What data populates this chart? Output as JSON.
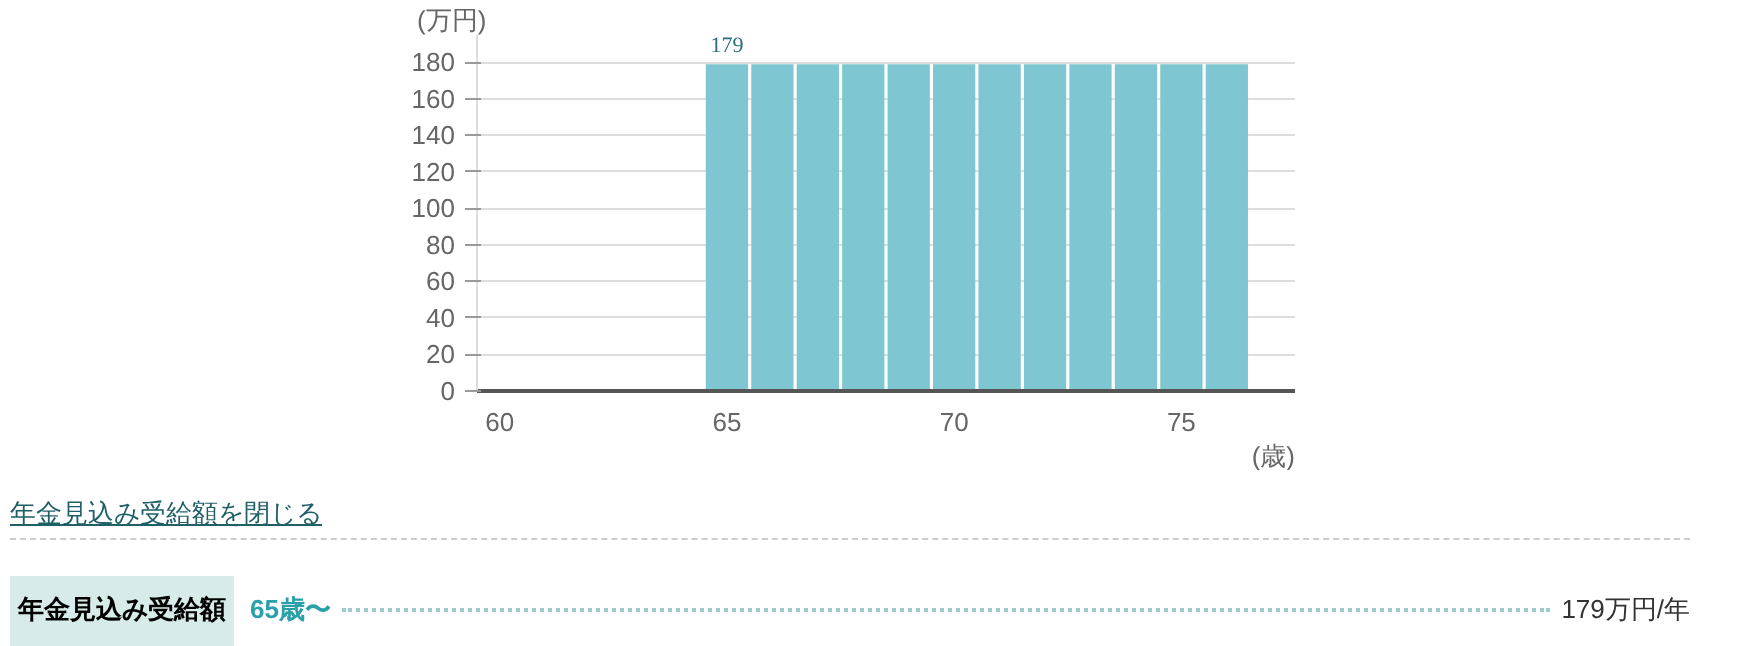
{
  "chart_data": {
    "type": "bar",
    "xlabel": "(歳)",
    "ylabel": "(万円)",
    "x": [
      65,
      66,
      67,
      68,
      69,
      70,
      71,
      72,
      73,
      74,
      75,
      76
    ],
    "values": [
      179,
      179,
      179,
      179,
      179,
      179,
      179,
      179,
      179,
      179,
      179,
      179
    ],
    "value_labels": [
      "179",
      null,
      null,
      null,
      null,
      null,
      null,
      null,
      null,
      null,
      null,
      null
    ],
    "color": "#7ec6d1",
    "xlim": [
      59.5,
      77.5
    ],
    "xticks": [
      60,
      65,
      70,
      75
    ],
    "ylim": [
      0,
      195
    ],
    "yticks": [
      0,
      20,
      40,
      60,
      80,
      100,
      120,
      140,
      160,
      180
    ],
    "grid": "y",
    "annotations": [
      "年金見込み受給額を閉じる",
      "年金見込み受給額",
      "65歳〜",
      "179万円/年"
    ]
  }
}
